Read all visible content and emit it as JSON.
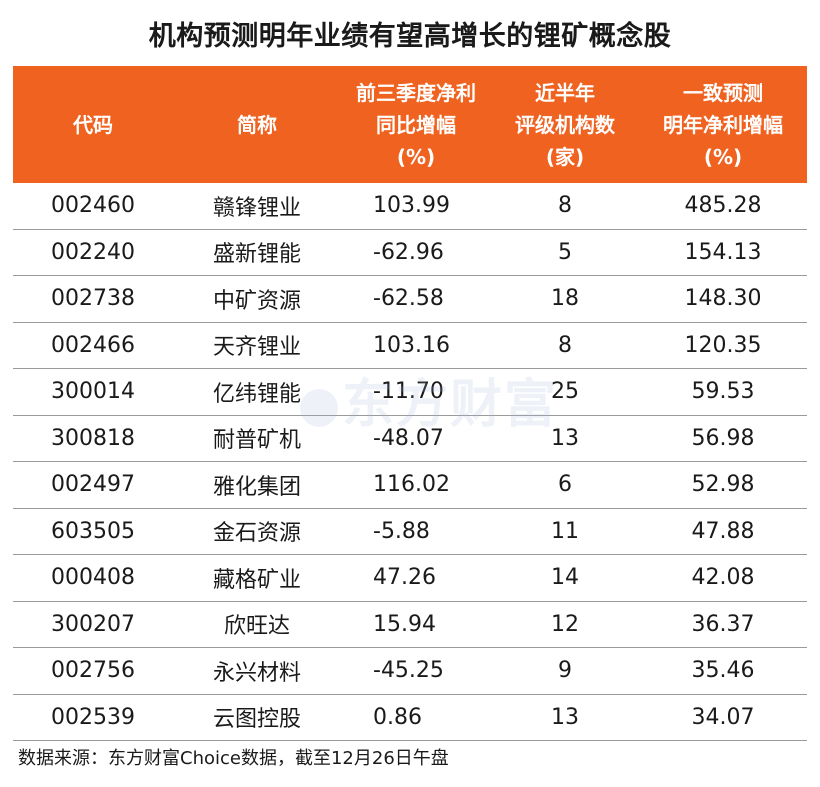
{
  "title": "机构预测明年业绩有望高增长的锂矿概念股",
  "headers": {
    "code": "代码",
    "name": "简称",
    "profit": "前三季度净利\n同比增幅\n(%)",
    "count": "近半年\n评级机构数\n(家)",
    "growth": "一致预测\n明年净利增幅\n(%)"
  },
  "rows": [
    {
      "code": "002460",
      "name": "赣锋锂业",
      "profit": "103.99",
      "count": "8",
      "growth": "485.28"
    },
    {
      "code": "002240",
      "name": "盛新锂能",
      "profit": "-62.96",
      "count": "5",
      "growth": "154.13"
    },
    {
      "code": "002738",
      "name": "中矿资源",
      "profit": "-62.58",
      "count": "18",
      "growth": "148.30"
    },
    {
      "code": "002466",
      "name": "天齐锂业",
      "profit": "103.16",
      "count": "8",
      "growth": "120.35"
    },
    {
      "code": "300014",
      "name": "亿纬锂能",
      "profit": "-11.70",
      "count": "25",
      "growth": "59.53"
    },
    {
      "code": "300818",
      "name": "耐普矿机",
      "profit": "-48.07",
      "count": "13",
      "growth": "56.98"
    },
    {
      "code": "002497",
      "name": "雅化集团",
      "profit": "116.02",
      "count": "6",
      "growth": "52.98"
    },
    {
      "code": "603505",
      "name": "金石资源",
      "profit": "-5.88",
      "count": "11",
      "growth": "47.88"
    },
    {
      "code": "000408",
      "name": "藏格矿业",
      "profit": "47.26",
      "count": "14",
      "growth": "42.08"
    },
    {
      "code": "300207",
      "name": "欣旺达",
      "profit": "15.94",
      "count": "12",
      "growth": "36.37"
    },
    {
      "code": "002756",
      "name": "永兴材料",
      "profit": "-45.25",
      "count": "9",
      "growth": "35.46"
    },
    {
      "code": "002539",
      "name": "云图控股",
      "profit": "0.86",
      "count": "13",
      "growth": "34.07"
    }
  ],
  "watermark": "东方财富",
  "source": "数据来源：东方财富Choice数据，截至12月26日午盘",
  "colors": {
    "header_bg": "#f0621f",
    "header_text": "#ffffff"
  }
}
